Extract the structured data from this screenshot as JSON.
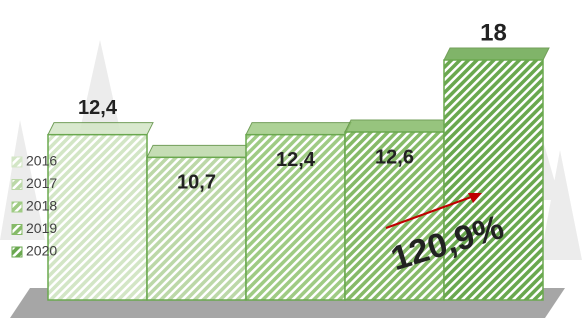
{
  "chart_data": {
    "type": "bar3d",
    "series": [
      {
        "name": "2016",
        "color": "#d3e6c6",
        "values": [
          12.4
        ],
        "value_labels": [
          "12,4"
        ]
      },
      {
        "name": "2017",
        "color": "#bcd8a8",
        "values": [
          10.7
        ],
        "value_labels": [
          "10,7"
        ]
      },
      {
        "name": "2018",
        "color": "#9fcb84",
        "values": [
          12.4
        ],
        "value_labels": [
          "12,4"
        ]
      },
      {
        "name": "2019",
        "color": "#86ba68",
        "values": [
          12.6
        ],
        "value_labels": [
          "12,6"
        ]
      },
      {
        "name": "2020",
        "color": "#6aa84f",
        "values": [
          18
        ],
        "value_labels": [
          "18"
        ]
      }
    ],
    "annotation": "120,9%"
  }
}
